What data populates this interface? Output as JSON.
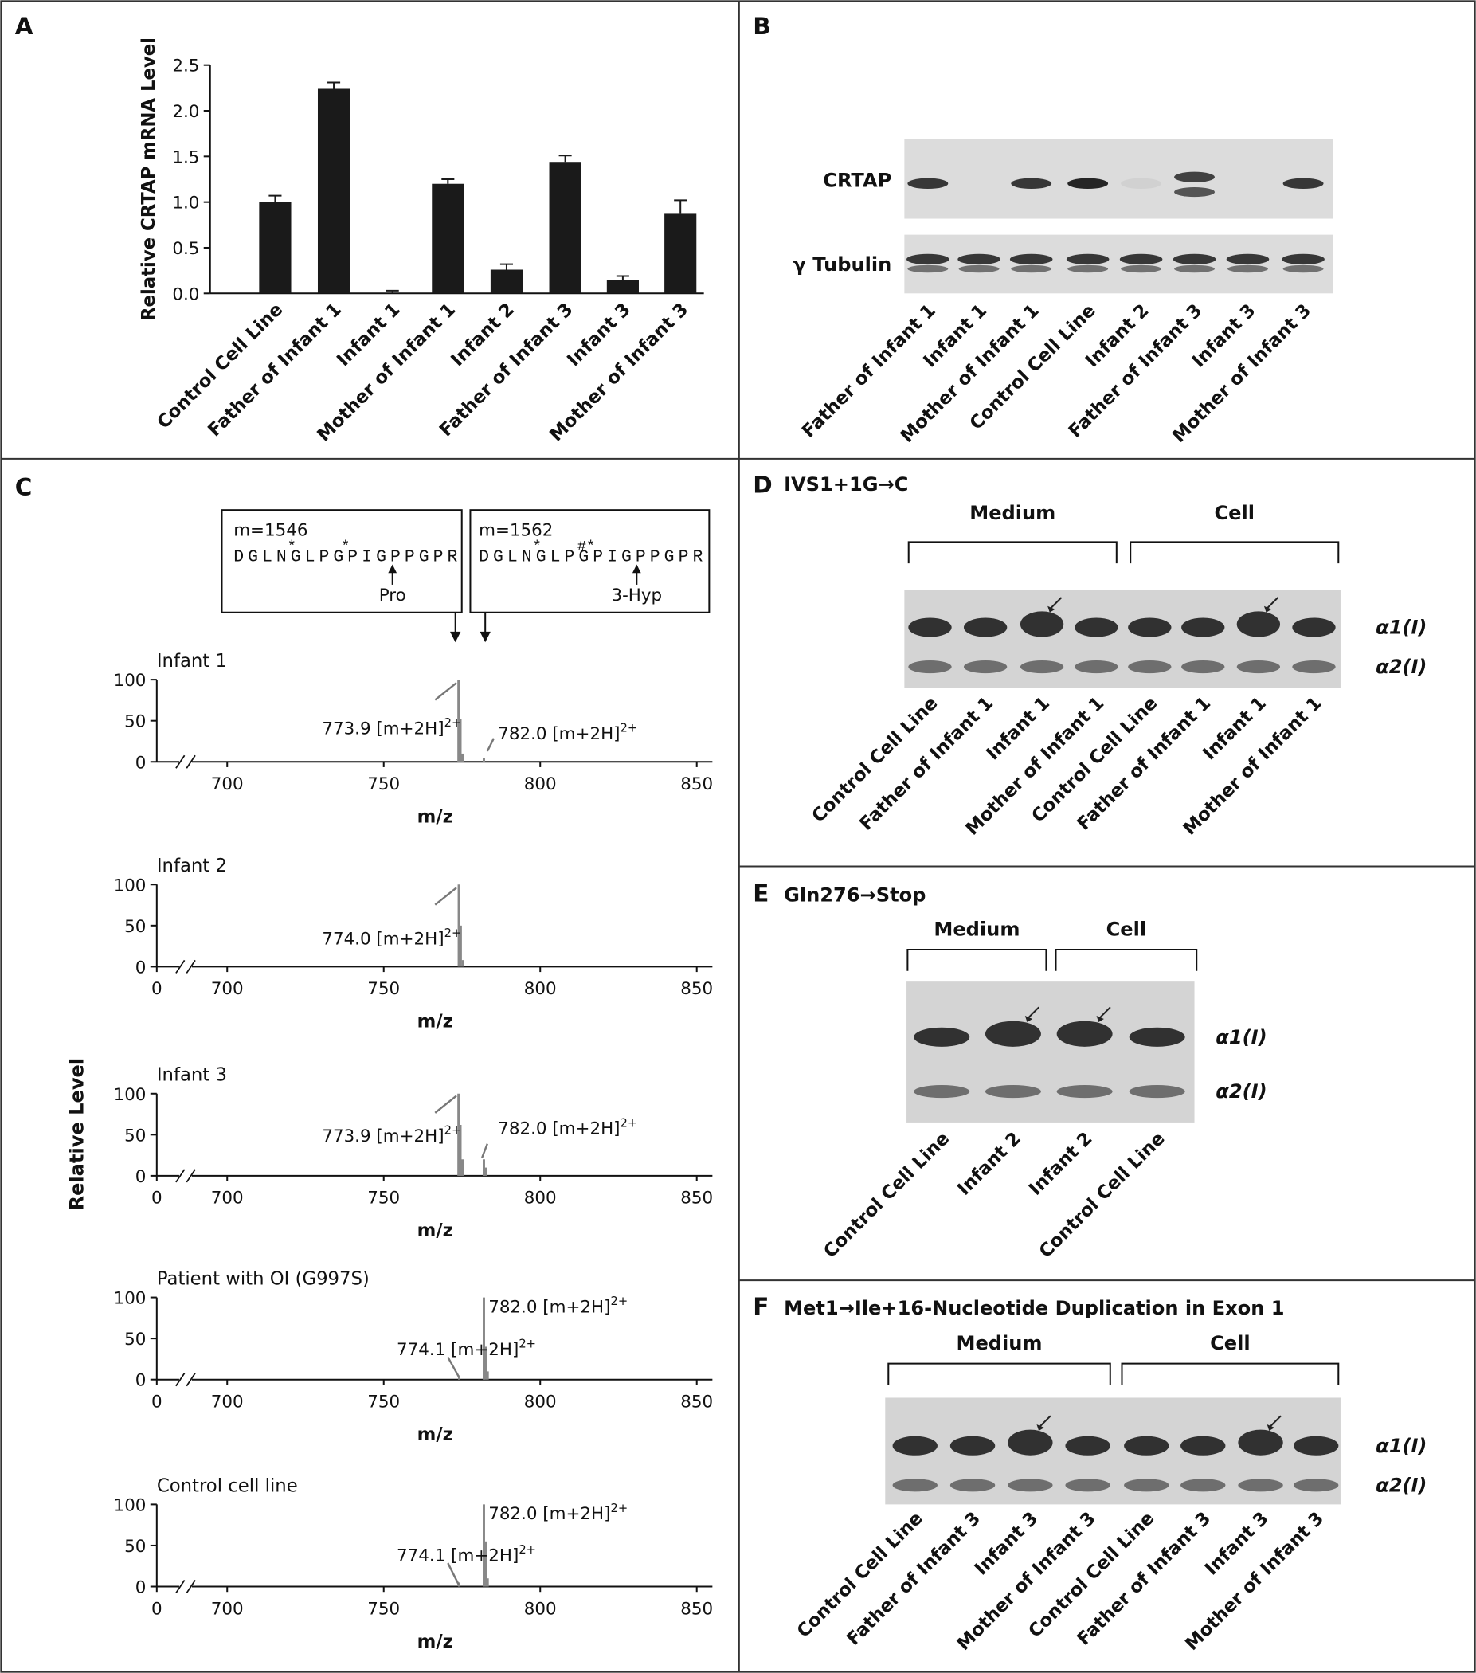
{
  "chart_data": [
    {
      "type": "bar",
      "label": "A",
      "ylabel": "Relative CRTAP mRNA Level",
      "categories": [
        "Control Cell Line",
        "Father of Infant 1",
        "Infant 1",
        "Mother of Infant 1",
        "Infant 2",
        "Father of Infant 3",
        "Infant 3",
        "Mother of Infant 3"
      ],
      "values": [
        1.0,
        2.24,
        0,
        1.2,
        0.26,
        1.44,
        0.15,
        0.88
      ],
      "errors": [
        0.07,
        0.07,
        0.03,
        0.05,
        0.06,
        0.07,
        0.04,
        0.14
      ],
      "color": "#1a1a1a",
      "ylim": [
        0,
        2.5
      ],
      "yticks": [
        {
          "value": 0,
          "label": "0.0"
        },
        0.5,
        {
          "value": 1,
          "label": "1.0"
        },
        1.5,
        {
          "value": 2,
          "label": "2.0"
        },
        2.5
      ]
    },
    {
      "type": "stem",
      "title": "Infant 1",
      "x": [
        773.9,
        774.5,
        775.2,
        782.0
      ],
      "values": [
        100,
        52,
        10,
        5
      ],
      "color": "#888888",
      "xlim": [
        677.5,
        855
      ],
      "xticks": [
        700,
        750,
        800,
        850
      ],
      "ylim": [
        0,
        100
      ],
      "yticks": [
        0,
        50,
        100
      ],
      "xlabel": "m/z",
      "axis_break": true,
      "annotations": [
        {
          "text": "773.9 [m+2H]",
          "sup": "2+"
        },
        {
          "text": "782.0 [m+2H]",
          "sup": "2+"
        }
      ]
    },
    {
      "type": "stem",
      "title": "Infant 2",
      "x": [
        774.0,
        774.6,
        775.3
      ],
      "values": [
        100,
        50,
        8
      ],
      "color": "#888888",
      "xlim": [
        677.5,
        855
      ],
      "xticks": [
        0,
        700,
        750,
        800,
        850
      ],
      "ylim": [
        0,
        100
      ],
      "yticks": [
        0,
        50,
        100
      ],
      "xlabel": "m/z",
      "axis_break": true,
      "annotations": [
        {
          "text": "774.0 [m+2H]",
          "sup": "2+"
        }
      ]
    },
    {
      "type": "stem",
      "title": "Infant 3",
      "x": [
        773.9,
        774.5,
        775.2,
        782.0,
        782.6
      ],
      "values": [
        100,
        62,
        20,
        20,
        10
      ],
      "color": "#888888",
      "xlim": [
        677.5,
        855
      ],
      "xticks": [
        0,
        700,
        750,
        800,
        850
      ],
      "ylim": [
        0,
        100
      ],
      "yticks": [
        0,
        50,
        100
      ],
      "xlabel": "m/z",
      "axis_break": true,
      "annotations": [
        {
          "text": "773.9 [m+2H]",
          "sup": "2+"
        },
        {
          "text": "782.0 [m+2H]",
          "sup": "2+"
        }
      ]
    },
    {
      "type": "stem",
      "title": "Patient with OI (G997S)",
      "x": [
        774.1,
        782.0,
        782.6,
        783.2
      ],
      "values": [
        5,
        100,
        40,
        10
      ],
      "color": "#888888",
      "xlim": [
        677.5,
        855
      ],
      "xticks": [
        0,
        700,
        750,
        800,
        850
      ],
      "ylim": [
        0,
        100
      ],
      "yticks": [
        0,
        50,
        100
      ],
      "xlabel": "m/z",
      "axis_break": true,
      "annotations": [
        {
          "text": "774.1 [m+2H]",
          "sup": "2+"
        },
        {
          "text": "782.0 [m+2H]",
          "sup": "2+"
        }
      ]
    },
    {
      "type": "stem",
      "title": "Control cell line",
      "x": [
        774.1,
        782.0,
        782.6,
        783.2
      ],
      "values": [
        5,
        100,
        55,
        10
      ],
      "color": "#888888",
      "xlim": [
        677.5,
        855
      ],
      "xticks": [
        0,
        700,
        750,
        800,
        850
      ],
      "ylim": [
        0,
        100
      ],
      "yticks": [
        0,
        50,
        100
      ],
      "xlabel": "m/z",
      "axis_break": true,
      "annotations": [
        {
          "text": "774.1 [m+2H]",
          "sup": "2+"
        },
        {
          "text": "782.0 [m+2H]",
          "sup": "2+"
        }
      ]
    }
  ],
  "panels": {
    "B": {
      "label": "B",
      "rows": [
        "CRTAP",
        "γ Tubulin"
      ],
      "lanes": [
        "Father of Infant 1",
        "Infant 1",
        "Mother of Infant 1",
        "Control Cell Line",
        "Infant 2",
        "Father of Infant 3",
        "Infant 3",
        "Mother of Infant 3"
      ]
    },
    "C": {
      "label": "C",
      "ylabel": "Relative Level",
      "peptides": [
        {
          "mass": "m=1546",
          "marks": "      *     *   ",
          "sequence": "DGLNGLPGPIGPPGPR",
          "residue": "Pro"
        },
        {
          "mass": "m=1562",
          "marks": "      *    #*   ",
          "sequence": "DGLNGLPGPIGPPGPR",
          "residue": "3-Hyp"
        }
      ]
    },
    "D": {
      "label": "D",
      "title": "IVS1+1G→C",
      "groups": [
        "Medium",
        "Cell"
      ],
      "bands": [
        "α1(I)",
        "α2(I)"
      ],
      "lanes": [
        "Control Cell Line",
        "Father of Infant 1",
        "Infant 1",
        "Mother of Infant 1",
        "Control Cell Line",
        "Father of Infant 1",
        "Infant 1",
        "Mother of Infant 1"
      ]
    },
    "E": {
      "label": "E",
      "title": "Gln276→Stop",
      "groups": [
        "Medium",
        "Cell"
      ],
      "bands": [
        "α1(I)",
        "α2(I)"
      ],
      "lanes": [
        "Control Cell Line",
        "Infant 2",
        "Infant 2",
        "Control Cell Line"
      ]
    },
    "F": {
      "label": "F",
      "title": "Met1→Ile+16-Nucleotide Duplication in Exon 1",
      "groups": [
        "Medium",
        "Cell"
      ],
      "bands": [
        "α1(I)",
        "α2(I)"
      ],
      "lanes": [
        "Control Cell Line",
        "Father of Infant 3",
        "Infant 3",
        "Mother of Infant 3",
        "Control Cell Line",
        "Father of Infant 3",
        "Infant 3",
        "Mother of Infant 3"
      ]
    }
  }
}
